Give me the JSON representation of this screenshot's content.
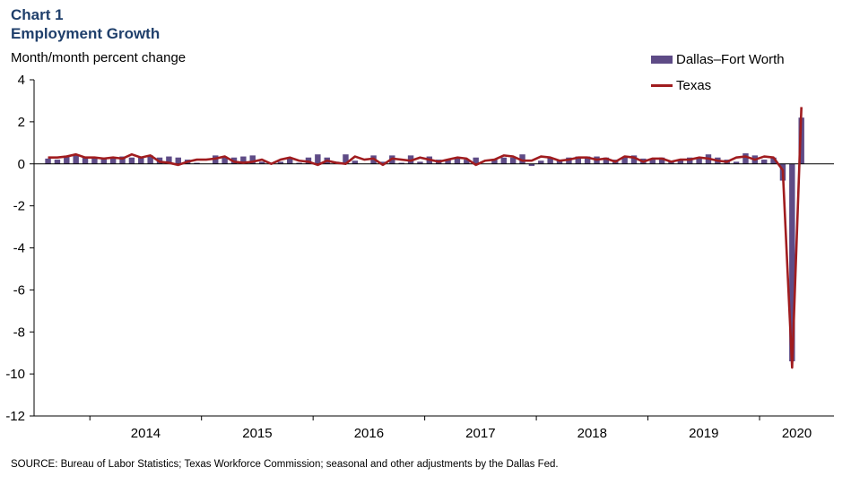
{
  "title_line1": "Chart 1",
  "title_line2": "Employment Growth",
  "source": "SOURCE: Bureau of Labor Statistics; Texas Workforce Commission; seasonal and other adjustments by the Dallas Fed.",
  "chart_data": {
    "type": "bar+line",
    "ylabel": "Month/month  percent change",
    "ylim": [
      -12,
      4
    ],
    "yticks": [
      4,
      2,
      0,
      -2,
      -4,
      -6,
      -8,
      -10,
      -12
    ],
    "xticks": [
      "2014",
      "2015",
      "2016",
      "2017",
      "2018",
      "2019",
      "2020"
    ],
    "x_start": "2013-07",
    "x_end": "2020-08",
    "legend_position": "top-right",
    "series": [
      {
        "name": "Dallas–Fort Worth",
        "kind": "bar",
        "color": "#5e4b86",
        "start": "2013-08",
        "values": [
          0.25,
          0.2,
          0.35,
          0.4,
          0.3,
          0.25,
          0.3,
          0.3,
          0.35,
          0.3,
          0.35,
          0.4,
          0.3,
          0.35,
          0.3,
          0.2,
          0.05,
          0.0,
          0.4,
          0.3,
          0.3,
          0.35,
          0.4,
          0.1,
          0.05,
          0.1,
          0.3,
          0.05,
          0.3,
          0.45,
          0.3,
          0.1,
          0.45,
          0.15,
          0.0,
          0.4,
          0.1,
          0.4,
          0.05,
          0.4,
          0.1,
          0.35,
          0.2,
          0.2,
          0.25,
          0.2,
          0.3,
          0.0,
          0.2,
          0.3,
          0.3,
          0.45,
          -0.1,
          0.15,
          0.3,
          0.2,
          0.3,
          0.35,
          0.35,
          0.35,
          0.3,
          0.2,
          0.3,
          0.4,
          0.25,
          0.2,
          0.3,
          0.1,
          0.2,
          0.3,
          0.3,
          0.45,
          0.3,
          0.2,
          0.1,
          0.5,
          0.4,
          0.2,
          0.3,
          -0.8,
          -9.4,
          2.2
        ]
      },
      {
        "name": "Texas",
        "kind": "line",
        "color": "#a01c1f",
        "start": "2013-08",
        "values": [
          0.3,
          0.3,
          0.35,
          0.45,
          0.3,
          0.3,
          0.25,
          0.3,
          0.25,
          0.45,
          0.3,
          0.4,
          0.1,
          0.05,
          -0.05,
          0.1,
          0.2,
          0.2,
          0.25,
          0.35,
          0.1,
          0.05,
          0.1,
          0.2,
          0.0,
          0.2,
          0.3,
          0.15,
          0.1,
          -0.05,
          0.15,
          0.05,
          0.0,
          0.35,
          0.2,
          0.25,
          -0.05,
          0.25,
          0.2,
          0.15,
          0.3,
          0.2,
          0.1,
          0.2,
          0.3,
          0.25,
          -0.05,
          0.15,
          0.2,
          0.4,
          0.35,
          0.15,
          0.15,
          0.35,
          0.3,
          0.15,
          0.2,
          0.3,
          0.3,
          0.2,
          0.25,
          0.1,
          0.35,
          0.3,
          0.1,
          0.25,
          0.25,
          0.1,
          0.2,
          0.2,
          0.3,
          0.25,
          0.15,
          0.1,
          0.3,
          0.35,
          0.2,
          0.35,
          0.3,
          -0.3,
          -9.7,
          2.7
        ]
      }
    ]
  }
}
